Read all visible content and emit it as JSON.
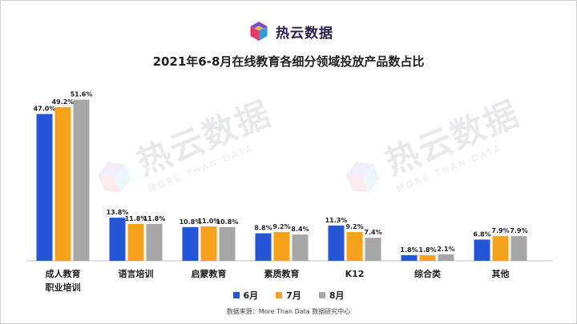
{
  "logo": {
    "text": "热云数据"
  },
  "watermark": {
    "text": "热云数据",
    "sub": "MORE THAN DATA"
  },
  "source": "数据来源：More Than Data 数据研究中心",
  "chart_data": {
    "type": "bar",
    "title": "2021年6-8月在线教育各细分领域投放产品数占比",
    "categories": [
      [
        "成人教育",
        "职业培训"
      ],
      [
        "语言培训"
      ],
      [
        "启蒙教育"
      ],
      [
        "素质教育"
      ],
      [
        "K12"
      ],
      [
        "综合类"
      ],
      [
        "其他"
      ]
    ],
    "series": [
      {
        "name": "6月",
        "color": "#2456d6",
        "values": [
          47.0,
          13.8,
          10.8,
          8.8,
          11.3,
          1.8,
          6.8
        ],
        "labels": [
          "47.0%",
          "13.8%",
          "10.8%",
          "8.8%",
          "11.3%",
          "1.8%",
          "6.8%"
        ]
      },
      {
        "name": "7月",
        "color": "#f7a21b",
        "values": [
          49.2,
          11.8,
          11.0,
          9.2,
          9.2,
          1.8,
          7.9
        ],
        "labels": [
          "49.2%",
          "11.8%",
          "11.0%",
          "9.2%",
          "9.2%",
          "1.8%",
          "7.9%"
        ]
      },
      {
        "name": "8月",
        "color": "#a6a6a6",
        "values": [
          51.6,
          11.8,
          10.8,
          8.4,
          7.4,
          2.1,
          7.9
        ],
        "labels": [
          "51.6%",
          "11.8%",
          "10.8%",
          "8.4%",
          "7.4%",
          "2.1%",
          "7.9%"
        ]
      }
    ],
    "ylim": [
      0,
      52
    ],
    "grid": false,
    "legend_position": "bottom"
  }
}
